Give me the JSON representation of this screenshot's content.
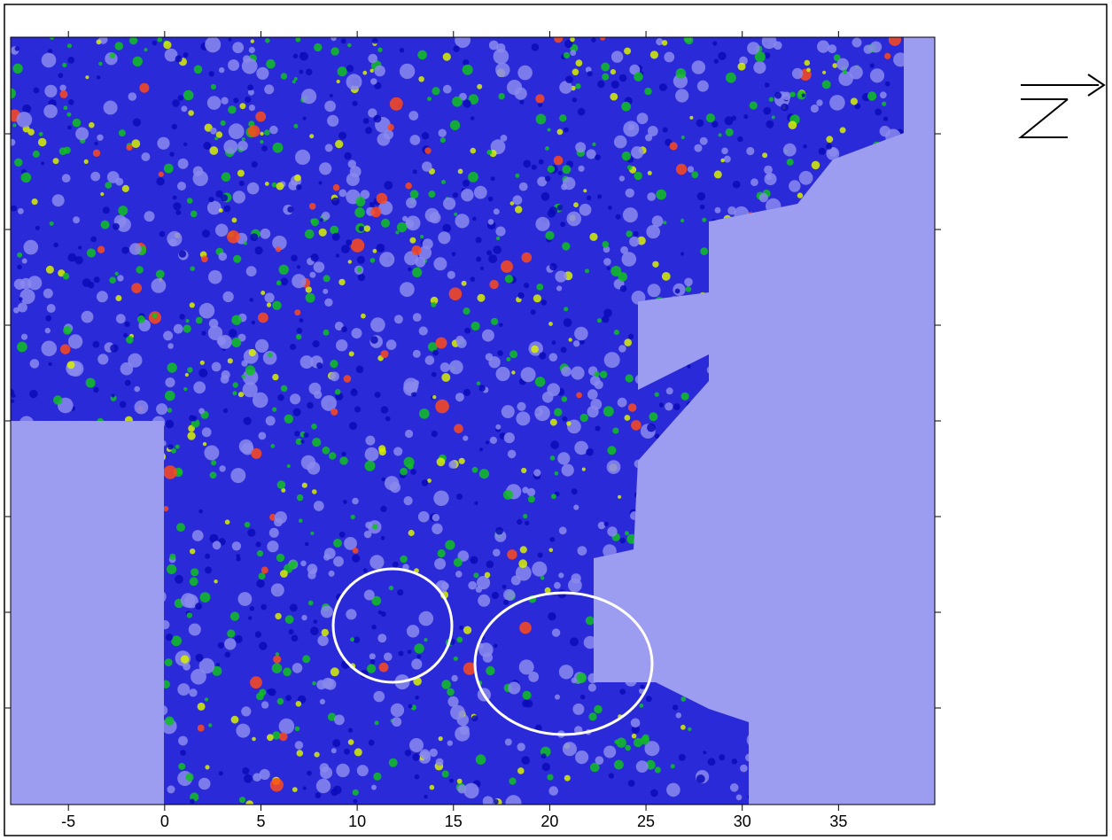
{
  "chart_data": {
    "type": "heatmap",
    "xlim": [
      -8,
      40
    ],
    "xticks": [
      -5,
      0,
      5,
      10,
      15,
      20,
      25,
      30,
      35
    ]
  }
}
